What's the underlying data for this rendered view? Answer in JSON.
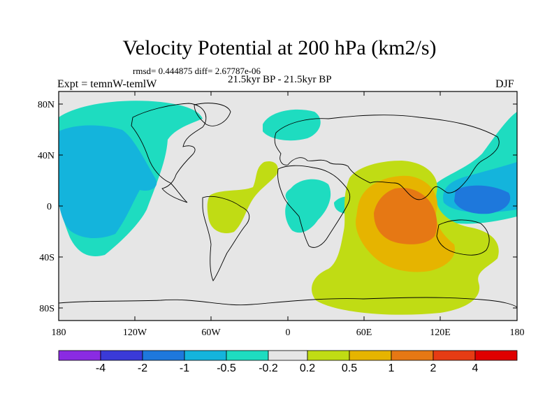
{
  "map": {
    "title": "Velocity Potential at 200 hPa (km2/s)",
    "stats": "rmsd= 0.444875 diff= 2.67787e-06",
    "subtitle": "21.5kyr BP - 21.5kyr BP",
    "experiment": "Expt = temnW-temlW",
    "season": "DJF",
    "lat_labels": [
      "80N",
      "40N",
      "0",
      "40S",
      "80S"
    ],
    "lon_labels": [
      "180",
      "120W",
      "60W",
      "0",
      "60E",
      "120E",
      "180"
    ]
  },
  "colorbar": {
    "labels": [
      "-4",
      "-2",
      "-1",
      "-0.5",
      "-0.2",
      "0.2",
      "0.5",
      "1",
      "2",
      "4"
    ],
    "colors": [
      "#8a2be2",
      "#3a3ad8",
      "#1e78dc",
      "#14b4dc",
      "#1edcc0",
      "#e6e6e6",
      "#c0dc14",
      "#e6b400",
      "#e67814",
      "#e63c14",
      "#e00000"
    ]
  },
  "colors": {
    "land_bg": "#e6e6e6",
    "neg_small": "#1edcc0",
    "neg_mid": "#14b4dc",
    "neg_large": "#1e78dc",
    "pos_small": "#c0dc14",
    "pos_mid": "#e6b400",
    "pos_large": "#e67814"
  }
}
